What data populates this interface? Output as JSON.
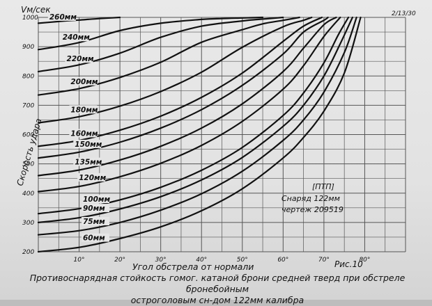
{
  "header": {
    "y_unit": "Vм/сек",
    "corner_note": "2/13/30"
  },
  "chart_data": {
    "type": "line",
    "title": "",
    "xlabel": "Угол обстрела от нормали",
    "ylabel": "Скорость удара",
    "xlim": [
      0,
      90
    ],
    "ylim": [
      200,
      1000
    ],
    "x_ticks": [
      "10°",
      "20°",
      "30°",
      "40°",
      "50°",
      "60°",
      "70°",
      "80°"
    ],
    "y_ticks": [
      "200",
      "300",
      "400",
      "500",
      "600",
      "700",
      "800",
      "900",
      "1000"
    ],
    "grid": true,
    "series": [
      {
        "name": "60мм",
        "x": [
          0,
          10,
          20,
          30,
          40,
          50,
          60,
          65,
          70,
          75,
          79
        ],
        "y": [
          200,
          215,
          245,
          285,
          340,
          415,
          520,
          590,
          680,
          810,
          1000
        ]
      },
      {
        "name": "75мм",
        "x": [
          0,
          10,
          20,
          30,
          40,
          50,
          60,
          65,
          70,
          75,
          78
        ],
        "y": [
          258,
          272,
          300,
          342,
          398,
          475,
          580,
          650,
          745,
          880,
          1000
        ]
      },
      {
        "name": "90мм",
        "x": [
          0,
          10,
          20,
          30,
          40,
          50,
          60,
          65,
          70,
          74,
          77
        ],
        "y": [
          300,
          316,
          346,
          388,
          445,
          522,
          628,
          700,
          800,
          910,
          1000
        ]
      },
      {
        "name": "100мм",
        "x": [
          0,
          10,
          20,
          30,
          40,
          50,
          60,
          65,
          70,
          73.5,
          76
        ],
        "y": [
          330,
          347,
          377,
          420,
          478,
          556,
          665,
          742,
          845,
          940,
          1000
        ]
      },
      {
        "name": "120мм",
        "x": [
          0,
          10,
          20,
          30,
          40,
          50,
          60,
          65,
          70,
          74
        ],
        "y": [
          405,
          423,
          456,
          502,
          563,
          645,
          755,
          835,
          935,
          1000
        ]
      },
      {
        "name": "135мм",
        "x": [
          0,
          10,
          20,
          30,
          40,
          50,
          60,
          65,
          70,
          73
        ],
        "y": [
          460,
          479,
          513,
          560,
          622,
          705,
          815,
          895,
          975,
          1000
        ]
      },
      {
        "name": "150мм",
        "x": [
          0,
          10,
          20,
          30,
          40,
          50,
          60,
          65,
          70,
          71
        ],
        "y": [
          520,
          540,
          574,
          622,
          685,
          768,
          875,
          950,
          990,
          1000
        ]
      },
      {
        "name": "160мм",
        "x": [
          0,
          10,
          20,
          30,
          40,
          50,
          60,
          65,
          69.5
        ],
        "y": [
          560,
          580,
          615,
          663,
          727,
          810,
          918,
          970,
          1000
        ]
      },
      {
        "name": "180мм",
        "x": [
          0,
          10,
          20,
          30,
          40,
          50,
          60,
          65,
          67
        ],
        "y": [
          640,
          661,
          697,
          747,
          813,
          898,
          968,
          990,
          1000
        ]
      },
      {
        "name": "200мм",
        "x": [
          0,
          10,
          20,
          30,
          40,
          50,
          55,
          60,
          64
        ],
        "y": [
          735,
          757,
          795,
          847,
          915,
          958,
          978,
          990,
          1000
        ]
      },
      {
        "name": "220мм",
        "x": [
          0,
          10,
          20,
          30,
          40,
          50,
          54,
          60
        ],
        "y": [
          815,
          838,
          878,
          932,
          970,
          988,
          993,
          1000
        ]
      },
      {
        "name": "240мм",
        "x": [
          0,
          10,
          20,
          30,
          40,
          45,
          50,
          55
        ],
        "y": [
          890,
          914,
          955,
          980,
          993,
          996,
          998,
          1000
        ]
      },
      {
        "name": "260мм",
        "x": [
          0,
          5,
          10,
          15,
          20
        ],
        "y": [
          980,
          986,
          991,
          996,
          1000
        ]
      }
    ],
    "annotation": {
      "code": "[ПТП]",
      "line1": "Снаряд 122мм",
      "line2": "чертеж 209519"
    },
    "figure_label": "Рис.10"
  },
  "caption": {
    "line1": "Противоснарядная стойкость гомог. катаной брони средней тверд при обстреле бронебойным",
    "line2": "остроголовым сн-дом 122мм калибра"
  }
}
